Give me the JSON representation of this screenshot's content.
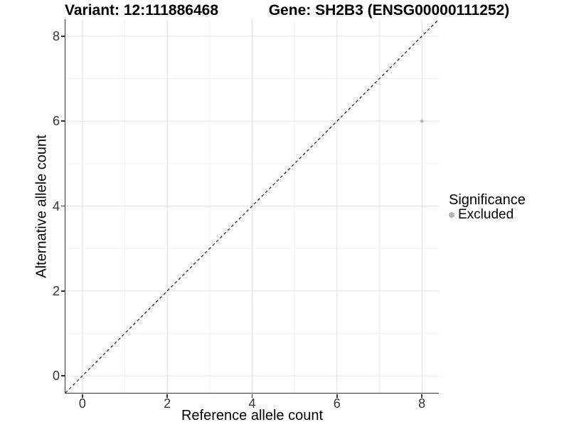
{
  "chart_data": {
    "type": "scatter",
    "title_left": "Variant: 12:111886468",
    "title_right": "Gene: SH2B3 (ENSG00000111252)",
    "xlabel": "Reference allele count",
    "ylabel": "Alternative allele count",
    "xlim": [
      -0.4,
      8.4
    ],
    "ylim": [
      -0.4,
      8.4
    ],
    "xticks": [
      0,
      2,
      4,
      6,
      8
    ],
    "yticks": [
      0,
      2,
      4,
      6,
      8
    ],
    "minor_xticks": [
      1,
      3,
      5,
      7
    ],
    "minor_yticks": [
      1,
      3,
      5,
      7
    ],
    "grid": "on",
    "legend_position": "right",
    "series": [
      {
        "name": "Excluded",
        "color": "#b5b5b5",
        "points": [
          {
            "x": 8,
            "y": 6
          }
        ]
      }
    ],
    "reference_line": {
      "kind": "identity",
      "slope": 1,
      "intercept": 0,
      "style": "dashed",
      "color": "#000000"
    },
    "legend": {
      "title": "Significance",
      "items": [
        {
          "label": "Excluded",
          "color": "#b5b5b5"
        }
      ]
    },
    "colors": {
      "background": "#ffffff",
      "grid_major": "#e3e3e3",
      "grid_minor": "#f0f0f0",
      "axis_line": "#333333",
      "tick_text": "#333333",
      "point": "#b5b5b5"
    }
  }
}
